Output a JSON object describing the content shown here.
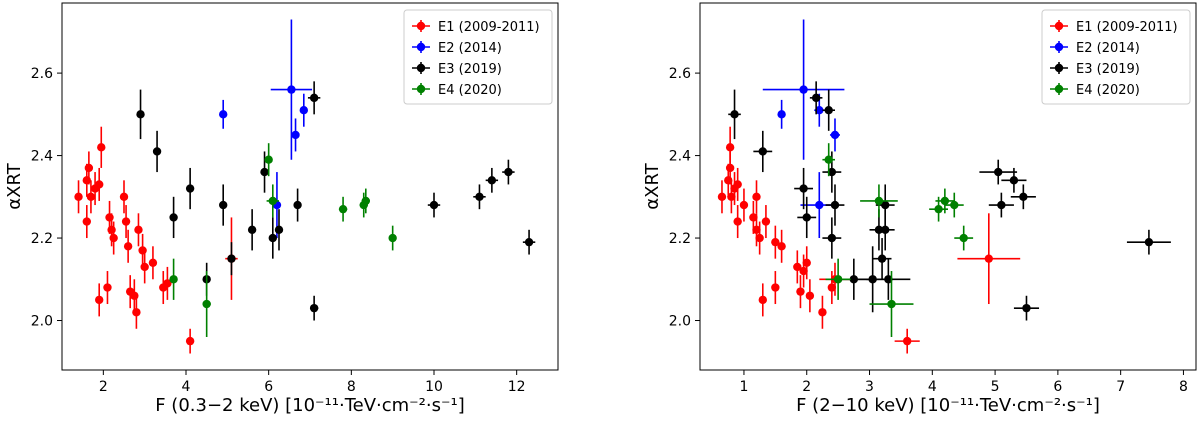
{
  "chart_data": [
    {
      "type": "scatter",
      "title": "",
      "xlabel": "F (0.3−2 keV) [10⁻¹¹·TeV·cm⁻²·s⁻¹]",
      "ylabel": "αXRT",
      "xlim": [
        1.0,
        13.0
      ],
      "ylim": [
        1.88,
        2.77
      ],
      "xticks": [
        2,
        4,
        6,
        8,
        10,
        12
      ],
      "yticks": [
        2.0,
        2.2,
        2.4,
        2.6
      ],
      "xtick_labels": [
        "2",
        "4",
        "6",
        "8",
        "10",
        "12"
      ],
      "ytick_labels": [
        "2.0",
        "2.2",
        "2.4",
        "2.6"
      ],
      "legend_position": "top-right",
      "series": [
        {
          "name": "E1 (2009-2011)",
          "color": "#ff0000",
          "points": [
            {
              "x": 1.4,
              "y": 2.3,
              "xe": 0.06,
              "ye": 0.04
            },
            {
              "x": 1.6,
              "y": 2.34,
              "xe": 0.06,
              "ye": 0.04
            },
            {
              "x": 1.65,
              "y": 2.37,
              "xe": 0.06,
              "ye": 0.04
            },
            {
              "x": 1.7,
              "y": 2.3,
              "xe": 0.06,
              "ye": 0.04
            },
            {
              "x": 1.8,
              "y": 2.32,
              "xe": 0.06,
              "ye": 0.04
            },
            {
              "x": 1.9,
              "y": 2.33,
              "xe": 0.06,
              "ye": 0.04
            },
            {
              "x": 1.95,
              "y": 2.42,
              "xe": 0.06,
              "ye": 0.05
            },
            {
              "x": 1.6,
              "y": 2.24,
              "xe": 0.06,
              "ye": 0.04
            },
            {
              "x": 1.9,
              "y": 2.05,
              "xe": 0.06,
              "ye": 0.04
            },
            {
              "x": 2.1,
              "y": 2.08,
              "xe": 0.06,
              "ye": 0.04
            },
            {
              "x": 2.15,
              "y": 2.25,
              "xe": 0.06,
              "ye": 0.04
            },
            {
              "x": 2.2,
              "y": 2.22,
              "xe": 0.06,
              "ye": 0.04
            },
            {
              "x": 2.25,
              "y": 2.2,
              "xe": 0.06,
              "ye": 0.04
            },
            {
              "x": 2.5,
              "y": 2.3,
              "xe": 0.06,
              "ye": 0.04
            },
            {
              "x": 2.55,
              "y": 2.24,
              "xe": 0.06,
              "ye": 0.04
            },
            {
              "x": 2.6,
              "y": 2.18,
              "xe": 0.06,
              "ye": 0.04
            },
            {
              "x": 2.65,
              "y": 2.07,
              "xe": 0.06,
              "ye": 0.04
            },
            {
              "x": 2.75,
              "y": 2.06,
              "xe": 0.06,
              "ye": 0.04
            },
            {
              "x": 2.8,
              "y": 2.02,
              "xe": 0.06,
              "ye": 0.04
            },
            {
              "x": 2.85,
              "y": 2.22,
              "xe": 0.06,
              "ye": 0.04
            },
            {
              "x": 2.95,
              "y": 2.17,
              "xe": 0.06,
              "ye": 0.04
            },
            {
              "x": 3.0,
              "y": 2.13,
              "xe": 0.06,
              "ye": 0.04
            },
            {
              "x": 3.2,
              "y": 2.14,
              "xe": 0.06,
              "ye": 0.04
            },
            {
              "x": 3.45,
              "y": 2.08,
              "xe": 0.06,
              "ye": 0.04
            },
            {
              "x": 3.55,
              "y": 2.09,
              "xe": 0.06,
              "ye": 0.04
            },
            {
              "x": 4.1,
              "y": 1.95,
              "xe": 0.06,
              "ye": 0.03
            },
            {
              "x": 5.1,
              "y": 2.15,
              "xe": 0.15,
              "ye": 0.1
            }
          ]
        },
        {
          "name": "E2 (2014)",
          "color": "#0000ff",
          "points": [
            {
              "x": 4.9,
              "y": 2.5,
              "xe": 0.05,
              "ye": 0.035
            },
            {
              "x": 6.55,
              "y": 2.56,
              "xe": 0.5,
              "ye": 0.17
            },
            {
              "x": 6.65,
              "y": 2.45,
              "xe": 0.06,
              "ye": 0.04
            },
            {
              "x": 6.85,
              "y": 2.51,
              "xe": 0.06,
              "ye": 0.04
            },
            {
              "x": 6.2,
              "y": 2.28,
              "xe": 0.1,
              "ye": 0.08
            }
          ]
        },
        {
          "name": "E3 (2019)",
          "color": "#000000",
          "points": [
            {
              "x": 2.9,
              "y": 2.5,
              "xe": 0.08,
              "ye": 0.06
            },
            {
              "x": 3.3,
              "y": 2.41,
              "xe": 0.08,
              "ye": 0.05
            },
            {
              "x": 3.7,
              "y": 2.25,
              "xe": 0.08,
              "ye": 0.05
            },
            {
              "x": 4.1,
              "y": 2.32,
              "xe": 0.08,
              "ye": 0.05
            },
            {
              "x": 4.5,
              "y": 2.1,
              "xe": 0.08,
              "ye": 0.04
            },
            {
              "x": 4.9,
              "y": 2.28,
              "xe": 0.08,
              "ye": 0.05
            },
            {
              "x": 5.1,
              "y": 2.15,
              "xe": 0.08,
              "ye": 0.04
            },
            {
              "x": 5.6,
              "y": 2.22,
              "xe": 0.08,
              "ye": 0.05
            },
            {
              "x": 5.9,
              "y": 2.36,
              "xe": 0.08,
              "ye": 0.05
            },
            {
              "x": 6.1,
              "y": 2.2,
              "xe": 0.08,
              "ye": 0.05
            },
            {
              "x": 6.25,
              "y": 2.22,
              "xe": 0.08,
              "ye": 0.05
            },
            {
              "x": 6.7,
              "y": 2.28,
              "xe": 0.08,
              "ye": 0.04
            },
            {
              "x": 7.1,
              "y": 2.54,
              "xe": 0.15,
              "ye": 0.04
            },
            {
              "x": 7.1,
              "y": 2.03,
              "xe": 0.1,
              "ye": 0.03
            },
            {
              "x": 10.0,
              "y": 2.28,
              "xe": 0.15,
              "ye": 0.03
            },
            {
              "x": 11.1,
              "y": 2.3,
              "xe": 0.15,
              "ye": 0.03
            },
            {
              "x": 11.4,
              "y": 2.34,
              "xe": 0.15,
              "ye": 0.03
            },
            {
              "x": 11.8,
              "y": 2.36,
              "xe": 0.15,
              "ye": 0.03
            },
            {
              "x": 12.3,
              "y": 2.19,
              "xe": 0.15,
              "ye": 0.03
            }
          ]
        },
        {
          "name": "E4 (2020)",
          "color": "#008000",
          "points": [
            {
              "x": 3.7,
              "y": 2.1,
              "xe": 0.08,
              "ye": 0.05
            },
            {
              "x": 4.5,
              "y": 2.04,
              "xe": 0.1,
              "ye": 0.08
            },
            {
              "x": 6.0,
              "y": 2.39,
              "xe": 0.05,
              "ye": 0.04
            },
            {
              "x": 6.1,
              "y": 2.29,
              "xe": 0.15,
              "ye": 0.04
            },
            {
              "x": 7.8,
              "y": 2.27,
              "xe": 0.1,
              "ye": 0.03
            },
            {
              "x": 8.3,
              "y": 2.28,
              "xe": 0.1,
              "ye": 0.03
            },
            {
              "x": 8.35,
              "y": 2.29,
              "xe": 0.1,
              "ye": 0.03
            },
            {
              "x": 9.0,
              "y": 2.2,
              "xe": 0.08,
              "ye": 0.03
            }
          ]
        }
      ]
    },
    {
      "type": "scatter",
      "title": "",
      "xlabel": "F (2−10 keV) [10⁻¹¹·TeV·cm⁻²·s⁻¹]",
      "ylabel": "αXRT",
      "xlim": [
        0.3,
        8.2
      ],
      "ylim": [
        1.88,
        2.77
      ],
      "xticks": [
        1,
        2,
        3,
        4,
        5,
        6,
        7,
        8
      ],
      "yticks": [
        2.0,
        2.2,
        2.4,
        2.6
      ],
      "xtick_labels": [
        "1",
        "2",
        "3",
        "4",
        "5",
        "6",
        "7",
        "8"
      ],
      "ytick_labels": [
        "2.0",
        "2.2",
        "2.4",
        "2.6"
      ],
      "legend_position": "top-right",
      "series": [
        {
          "name": "E1 (2009-2011)",
          "color": "#ff0000",
          "points": [
            {
              "x": 0.65,
              "y": 2.3,
              "xe": 0.04,
              "ye": 0.04
            },
            {
              "x": 0.75,
              "y": 2.34,
              "xe": 0.04,
              "ye": 0.04
            },
            {
              "x": 0.78,
              "y": 2.37,
              "xe": 0.04,
              "ye": 0.04
            },
            {
              "x": 0.8,
              "y": 2.3,
              "xe": 0.04,
              "ye": 0.04
            },
            {
              "x": 0.85,
              "y": 2.32,
              "xe": 0.04,
              "ye": 0.04
            },
            {
              "x": 0.9,
              "y": 2.33,
              "xe": 0.04,
              "ye": 0.04
            },
            {
              "x": 0.78,
              "y": 2.42,
              "xe": 0.04,
              "ye": 0.05
            },
            {
              "x": 0.9,
              "y": 2.24,
              "xe": 0.04,
              "ye": 0.04
            },
            {
              "x": 1.0,
              "y": 2.28,
              "xe": 0.04,
              "ye": 0.04
            },
            {
              "x": 1.15,
              "y": 2.25,
              "xe": 0.04,
              "ye": 0.04
            },
            {
              "x": 1.2,
              "y": 2.22,
              "xe": 0.04,
              "ye": 0.04
            },
            {
              "x": 1.25,
              "y": 2.2,
              "xe": 0.04,
              "ye": 0.04
            },
            {
              "x": 1.2,
              "y": 2.3,
              "xe": 0.04,
              "ye": 0.04
            },
            {
              "x": 1.35,
              "y": 2.24,
              "xe": 0.04,
              "ye": 0.04
            },
            {
              "x": 1.5,
              "y": 2.19,
              "xe": 0.04,
              "ye": 0.04
            },
            {
              "x": 1.6,
              "y": 2.18,
              "xe": 0.04,
              "ye": 0.04
            },
            {
              "x": 1.3,
              "y": 2.05,
              "xe": 0.04,
              "ye": 0.04
            },
            {
              "x": 1.5,
              "y": 2.08,
              "xe": 0.04,
              "ye": 0.04
            },
            {
              "x": 1.85,
              "y": 2.13,
              "xe": 0.04,
              "ye": 0.04
            },
            {
              "x": 1.9,
              "y": 2.07,
              "xe": 0.04,
              "ye": 0.04
            },
            {
              "x": 1.95,
              "y": 2.12,
              "xe": 0.04,
              "ye": 0.04
            },
            {
              "x": 2.0,
              "y": 2.14,
              "xe": 0.04,
              "ye": 0.04
            },
            {
              "x": 2.05,
              "y": 2.06,
              "xe": 0.04,
              "ye": 0.04
            },
            {
              "x": 2.25,
              "y": 2.02,
              "xe": 0.04,
              "ye": 0.04
            },
            {
              "x": 2.4,
              "y": 2.08,
              "xe": 0.04,
              "ye": 0.04
            },
            {
              "x": 2.45,
              "y": 2.1,
              "xe": 0.25,
              "ye": 0.04
            },
            {
              "x": 3.6,
              "y": 1.95,
              "xe": 0.2,
              "ye": 0.03
            },
            {
              "x": 4.9,
              "y": 2.15,
              "xe": 0.5,
              "ye": 0.11
            }
          ]
        },
        {
          "name": "E2 (2014)",
          "color": "#0000ff",
          "points": [
            {
              "x": 1.6,
              "y": 2.5,
              "xe": 0.05,
              "ye": 0.035
            },
            {
              "x": 1.95,
              "y": 2.56,
              "xe": 0.65,
              "ye": 0.17
            },
            {
              "x": 2.2,
              "y": 2.51,
              "xe": 0.08,
              "ye": 0.04
            },
            {
              "x": 2.45,
              "y": 2.45,
              "xe": 0.08,
              "ye": 0.04
            },
            {
              "x": 2.2,
              "y": 2.28,
              "xe": 0.3,
              "ye": 0.08
            }
          ]
        },
        {
          "name": "E3 (2019)",
          "color": "#000000",
          "points": [
            {
              "x": 0.85,
              "y": 2.5,
              "xe": 0.1,
              "ye": 0.06
            },
            {
              "x": 1.3,
              "y": 2.41,
              "xe": 0.15,
              "ye": 0.05
            },
            {
              "x": 1.95,
              "y": 2.32,
              "xe": 0.15,
              "ye": 0.05
            },
            {
              "x": 2.0,
              "y": 2.25,
              "xe": 0.15,
              "ye": 0.05
            },
            {
              "x": 2.15,
              "y": 2.54,
              "xe": 0.1,
              "ye": 0.04
            },
            {
              "x": 2.35,
              "y": 2.51,
              "xe": 0.1,
              "ye": 0.05
            },
            {
              "x": 2.4,
              "y": 2.36,
              "xe": 0.15,
              "ye": 0.05
            },
            {
              "x": 2.45,
              "y": 2.28,
              "xe": 0.15,
              "ye": 0.05
            },
            {
              "x": 2.4,
              "y": 2.2,
              "xe": 0.15,
              "ye": 0.05
            },
            {
              "x": 2.75,
              "y": 2.1,
              "xe": 0.3,
              "ye": 0.05
            },
            {
              "x": 3.05,
              "y": 2.1,
              "xe": 0.25,
              "ye": 0.08
            },
            {
              "x": 3.2,
              "y": 2.15,
              "xe": 0.15,
              "ye": 0.05
            },
            {
              "x": 3.15,
              "y": 2.22,
              "xe": 0.15,
              "ye": 0.05
            },
            {
              "x": 3.25,
              "y": 2.22,
              "xe": 0.15,
              "ye": 0.05
            },
            {
              "x": 3.25,
              "y": 2.28,
              "xe": 0.15,
              "ye": 0.05
            },
            {
              "x": 3.3,
              "y": 2.1,
              "xe": 0.35,
              "ye": 0.05
            },
            {
              "x": 5.05,
              "y": 2.36,
              "xe": 0.3,
              "ye": 0.03
            },
            {
              "x": 5.3,
              "y": 2.34,
              "xe": 0.2,
              "ye": 0.03
            },
            {
              "x": 5.45,
              "y": 2.3,
              "xe": 0.2,
              "ye": 0.03
            },
            {
              "x": 5.1,
              "y": 2.28,
              "xe": 0.2,
              "ye": 0.03
            },
            {
              "x": 5.5,
              "y": 2.03,
              "xe": 0.2,
              "ye": 0.03
            },
            {
              "x": 7.45,
              "y": 2.19,
              "xe": 0.35,
              "ye": 0.03
            }
          ]
        },
        {
          "name": "E4 (2020)",
          "color": "#008000",
          "points": [
            {
              "x": 2.35,
              "y": 2.39,
              "xe": 0.1,
              "ye": 0.04
            },
            {
              "x": 2.5,
              "y": 2.1,
              "xe": 0.2,
              "ye": 0.05
            },
            {
              "x": 3.15,
              "y": 2.29,
              "xe": 0.3,
              "ye": 0.04
            },
            {
              "x": 3.35,
              "y": 2.04,
              "xe": 0.35,
              "ye": 0.08
            },
            {
              "x": 4.1,
              "y": 2.27,
              "xe": 0.15,
              "ye": 0.03
            },
            {
              "x": 4.2,
              "y": 2.29,
              "xe": 0.15,
              "ye": 0.03
            },
            {
              "x": 4.35,
              "y": 2.28,
              "xe": 0.15,
              "ye": 0.03
            },
            {
              "x": 4.5,
              "y": 2.2,
              "xe": 0.15,
              "ye": 0.03
            }
          ]
        }
      ]
    }
  ]
}
